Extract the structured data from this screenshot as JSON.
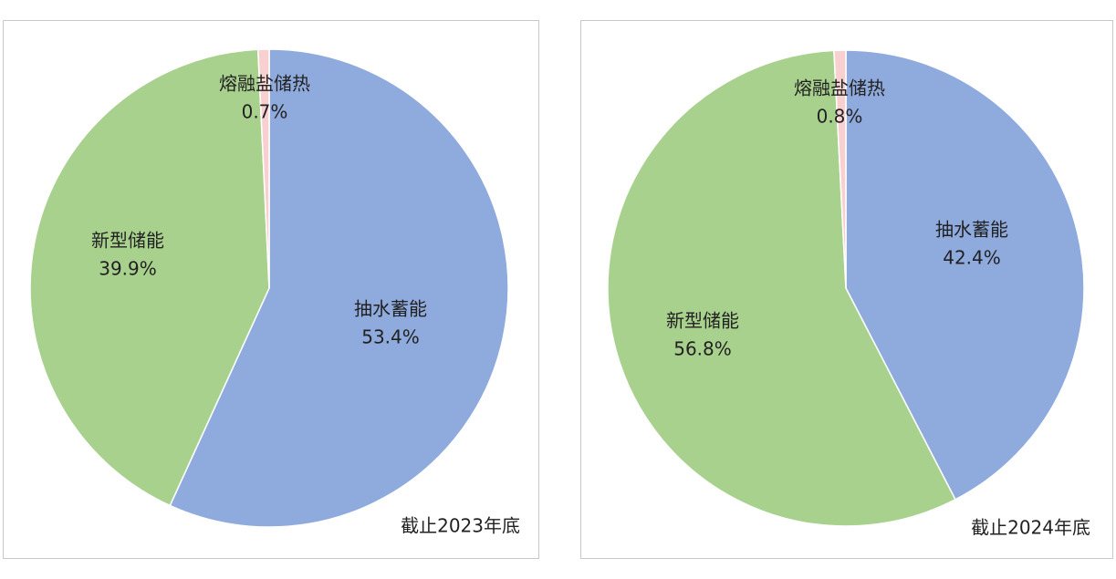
{
  "chart_data": [
    {
      "type": "pie",
      "categories": [
        "抽水蓄能",
        "新型储能",
        "熔融盐储热"
      ],
      "values": [
        53.4,
        39.9,
        0.7
      ],
      "value_labels": [
        "53.4%",
        "39.9%",
        "0.7%"
      ],
      "colors": [
        "#8faadc",
        "#a9d18e",
        "#f9d0d0"
      ],
      "caption": "截止2023年底"
    },
    {
      "type": "pie",
      "categories": [
        "抽水蓄能",
        "新型储能",
        "熔融盐储热"
      ],
      "values": [
        42.4,
        56.8,
        0.8
      ],
      "value_labels": [
        "42.4%",
        "56.8%",
        "0.8%"
      ],
      "colors": [
        "#8faadc",
        "#a9d18e",
        "#f9d0d0"
      ],
      "caption": "截止2024年底"
    }
  ]
}
